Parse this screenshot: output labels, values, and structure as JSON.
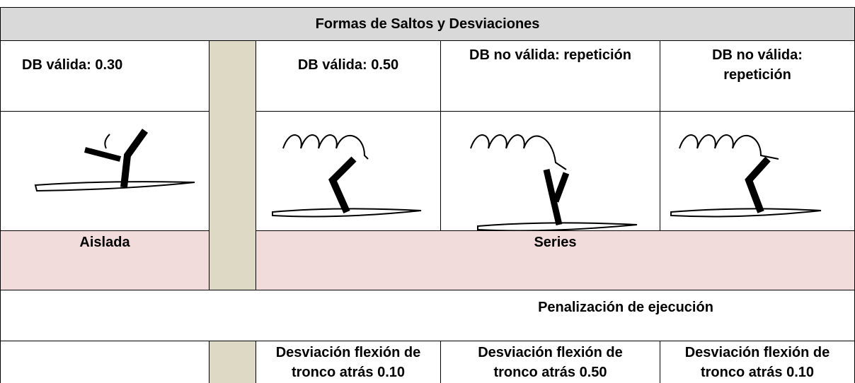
{
  "header": {
    "title": "Formas de Saltos y Desviaciones"
  },
  "columns": [
    "DB válida: 0.30",
    "DB válida: 0.50",
    "DB no válida: repetición",
    "DB no válida: repetición"
  ],
  "groups": {
    "isolated": "Aislada",
    "series": "Series"
  },
  "penalty": {
    "title": "Penalización de ejecución",
    "items": [
      "Desviación flexión de tronco atrás 0.10",
      "Desviación flexión de tronco atrás 0.50",
      "Desviación flexión de tronco atrás 0.10"
    ]
  }
}
